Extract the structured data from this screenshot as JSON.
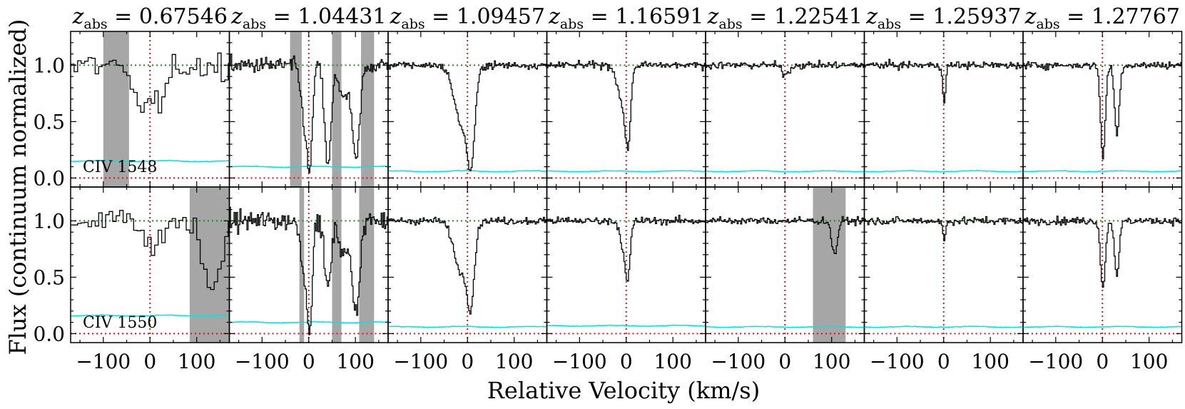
{
  "figure": {
    "xlabel": "Relative Velocity (km/s)",
    "ylabel": "Flux (continuum normalized)",
    "panel_title_prefix": "z",
    "panel_title_sub": "abs",
    "panel_title_eq": " = "
  },
  "chart_data": {
    "type": "line",
    "xlim": [
      -170,
      170
    ],
    "ylim": [
      -0.08,
      1.3
    ],
    "x_ticks": [
      -100,
      0,
      100
    ],
    "x_tick_labels": [
      "−100",
      "0",
      "100"
    ],
    "y_ticks": [
      0.0,
      0.5,
      1.0
    ],
    "y_tick_labels": [
      "0.0",
      "0.5",
      "1.0"
    ],
    "reference_lines": {
      "continuum": 1.0,
      "zero": 0.0,
      "velocity_zero": 0
    },
    "colors": {
      "flux": "#000000",
      "error": "#00e5e5",
      "continuum": "#1f8a1f",
      "zero": "#dd1111",
      "vzero": "#bb2222",
      "mask": "#a6a6a6"
    },
    "rows": [
      {
        "ion_label": "CIV 1548"
      },
      {
        "ion_label": "CIV 1550"
      }
    ],
    "systems": [
      {
        "z_abs": "0.67546",
        "bin_kms": 7.5,
        "rows": [
          {
            "error": 0.15,
            "noise": 0.13,
            "absorbers": [
              {
                "v": -20,
                "depth": 0.35,
                "sigma": 25
              },
              {
                "v": 20,
                "depth": 0.25,
                "sigma": 15
              }
            ],
            "masks": [
              [
                -100,
                -45
              ]
            ]
          },
          {
            "error": 0.16,
            "noise": 0.12,
            "absorbers": [
              {
                "v": 0,
                "depth": 0.3,
                "sigma": 15
              },
              {
                "v": 130,
                "depth": 0.6,
                "sigma": 18
              }
            ],
            "masks": [
              [
                85,
                170
              ]
            ]
          }
        ]
      },
      {
        "z_abs": "1.04431",
        "bin_kms": 2.5,
        "rows": [
          {
            "error": 0.1,
            "noise": 0.08,
            "absorbers": [
              {
                "v": -10,
                "depth": 0.45,
                "sigma": 8
              },
              {
                "v": 0,
                "depth": 0.95,
                "sigma": 6
              },
              {
                "v": 40,
                "depth": 0.9,
                "sigma": 7
              },
              {
                "v": 75,
                "depth": 0.3,
                "sigma": 10
              },
              {
                "v": 100,
                "depth": 0.85,
                "sigma": 8
              }
            ],
            "masks": [
              [
                -40,
                -15
              ],
              [
                50,
                70
              ],
              [
                112,
                140
              ]
            ]
          },
          {
            "error": 0.1,
            "noise": 0.1,
            "absorbers": [
              {
                "v": -10,
                "depth": 0.4,
                "sigma": 8
              },
              {
                "v": 0,
                "depth": 0.95,
                "sigma": 6
              },
              {
                "v": 40,
                "depth": 0.6,
                "sigma": 7
              },
              {
                "v": 75,
                "depth": 0.3,
                "sigma": 10
              },
              {
                "v": 100,
                "depth": 0.8,
                "sigma": 8
              }
            ],
            "masks": [
              [
                -20,
                -10
              ],
              [
                50,
                70
              ],
              [
                108,
                140
              ]
            ]
          }
        ]
      },
      {
        "z_abs": "1.09457",
        "bin_kms": 2.5,
        "rows": [
          {
            "error": 0.06,
            "noise": 0.035,
            "absorbers": [
              {
                "v": -15,
                "depth": 0.5,
                "sigma": 15
              },
              {
                "v": 5,
                "depth": 0.92,
                "sigma": 9
              }
            ],
            "masks": []
          },
          {
            "error": 0.06,
            "noise": 0.035,
            "absorbers": [
              {
                "v": -15,
                "depth": 0.45,
                "sigma": 15
              },
              {
                "v": 5,
                "depth": 0.75,
                "sigma": 8
              }
            ],
            "masks": []
          }
        ]
      },
      {
        "z_abs": "1.16591",
        "bin_kms": 2.5,
        "rows": [
          {
            "error": 0.06,
            "noise": 0.035,
            "absorbers": [
              {
                "v": -10,
                "depth": 0.3,
                "sigma": 10
              },
              {
                "v": 2,
                "depth": 0.7,
                "sigma": 6
              }
            ],
            "masks": []
          },
          {
            "error": 0.07,
            "noise": 0.035,
            "absorbers": [
              {
                "v": -5,
                "depth": 0.25,
                "sigma": 8
              },
              {
                "v": 2,
                "depth": 0.45,
                "sigma": 5
              }
            ],
            "masks": []
          }
        ]
      },
      {
        "z_abs": "1.22541",
        "bin_kms": 2.5,
        "rows": [
          {
            "error": 0.06,
            "noise": 0.035,
            "absorbers": [
              {
                "v": 0,
                "depth": 0.08,
                "sigma": 8
              }
            ],
            "masks": []
          },
          {
            "error": 0.06,
            "noise": 0.035,
            "absorbers": [
              {
                "v": 105,
                "depth": 0.3,
                "sigma": 6
              }
            ],
            "masks": [
              [
                60,
                130
              ]
            ]
          }
        ]
      },
      {
        "z_abs": "1.25937",
        "bin_kms": 2.5,
        "rows": [
          {
            "error": 0.06,
            "noise": 0.035,
            "absorbers": [
              {
                "v": 0,
                "depth": 0.35,
                "sigma": 3
              }
            ],
            "masks": []
          },
          {
            "error": 0.06,
            "noise": 0.035,
            "absorbers": [
              {
                "v": 0,
                "depth": 0.18,
                "sigma": 3
              }
            ],
            "masks": []
          }
        ]
      },
      {
        "z_abs": "1.27767",
        "bin_kms": 2.5,
        "rows": [
          {
            "error": 0.06,
            "noise": 0.035,
            "absorbers": [
              {
                "v": 0,
                "depth": 0.82,
                "sigma": 5
              },
              {
                "v": 30,
                "depth": 0.62,
                "sigma": 5
              }
            ],
            "masks": []
          },
          {
            "error": 0.06,
            "noise": 0.035,
            "absorbers": [
              {
                "v": 0,
                "depth": 0.6,
                "sigma": 5
              },
              {
                "v": 30,
                "depth": 0.48,
                "sigma": 5
              }
            ],
            "masks": []
          }
        ]
      }
    ]
  }
}
